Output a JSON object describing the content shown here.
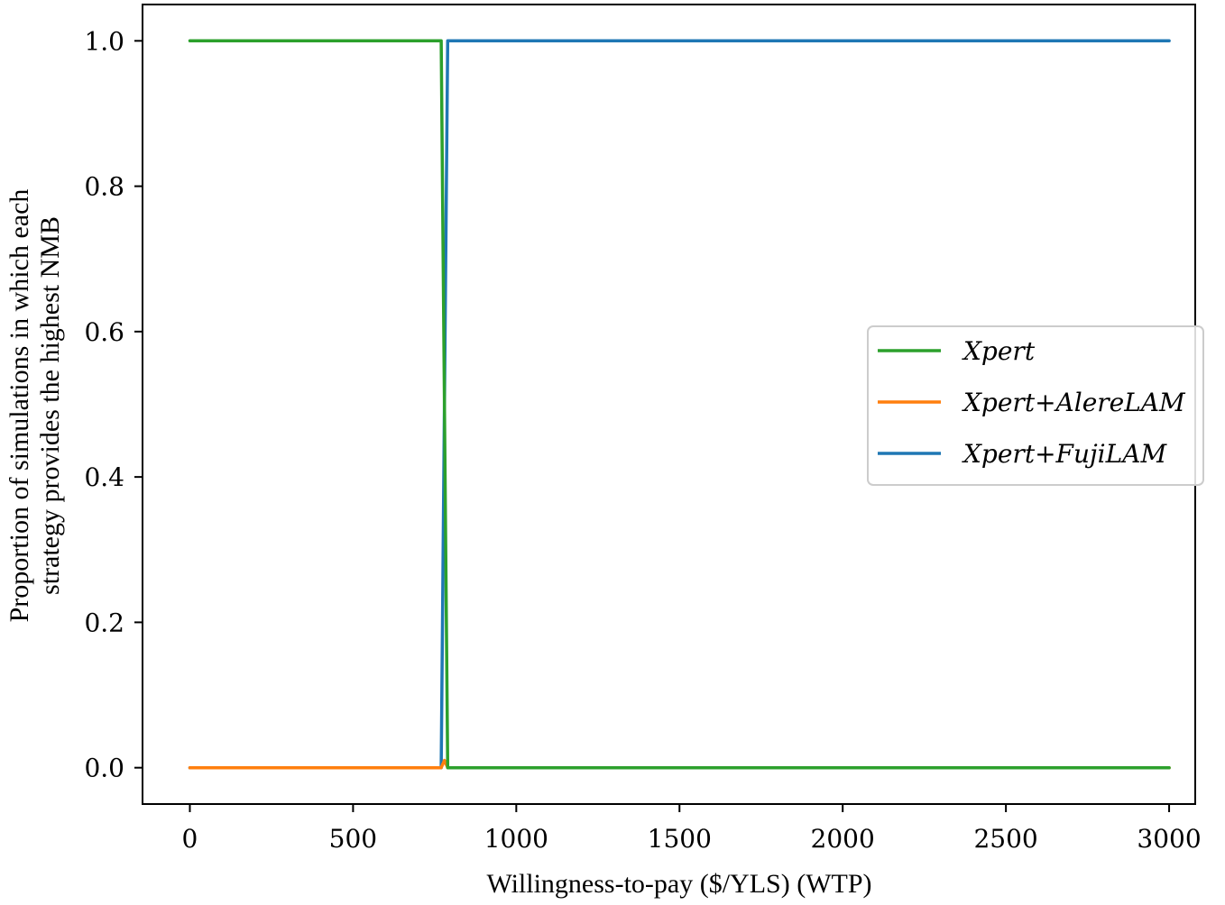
{
  "chart_data": {
    "type": "line",
    "title": "",
    "xlabel": "Willingness-to-pay ($/YLS) (WTP)",
    "ylabel_lines": [
      "Proportion of simulations in which each",
      "strategy provides the highest NMB"
    ],
    "xlim": [
      -145,
      3080
    ],
    "ylim": [
      -0.05,
      1.05
    ],
    "xticks": [
      0,
      500,
      1000,
      1500,
      2000,
      2500,
      3000
    ],
    "xtick_labels": [
      "0",
      "500",
      "1000",
      "1500",
      "2000",
      "2500",
      "3000"
    ],
    "yticks": [
      0.0,
      0.2,
      0.4,
      0.6,
      0.8,
      1.0
    ],
    "ytick_labels": [
      "0.0",
      "0.2",
      "0.4",
      "0.6",
      "0.8",
      "1.0"
    ],
    "grid": false,
    "legend_position": "center-right",
    "series": [
      {
        "name": "Xpert",
        "color": "#2ca02c",
        "x": [
          0,
          770,
          790,
          3000
        ],
        "y": [
          1.0,
          1.0,
          0.0,
          0.0
        ]
      },
      {
        "name": "Xpert+AlereLAM",
        "color": "#ff7f0e",
        "x": [
          0,
          770,
          780,
          790,
          3000
        ],
        "y": [
          0.0,
          0.0,
          0.01,
          0.0,
          0.0
        ]
      },
      {
        "name": "Xpert+FujiLAM",
        "color": "#1f77b4",
        "x": [
          0,
          770,
          790,
          3000
        ],
        "y": [
          0.0,
          0.0,
          1.0,
          1.0
        ]
      }
    ]
  }
}
